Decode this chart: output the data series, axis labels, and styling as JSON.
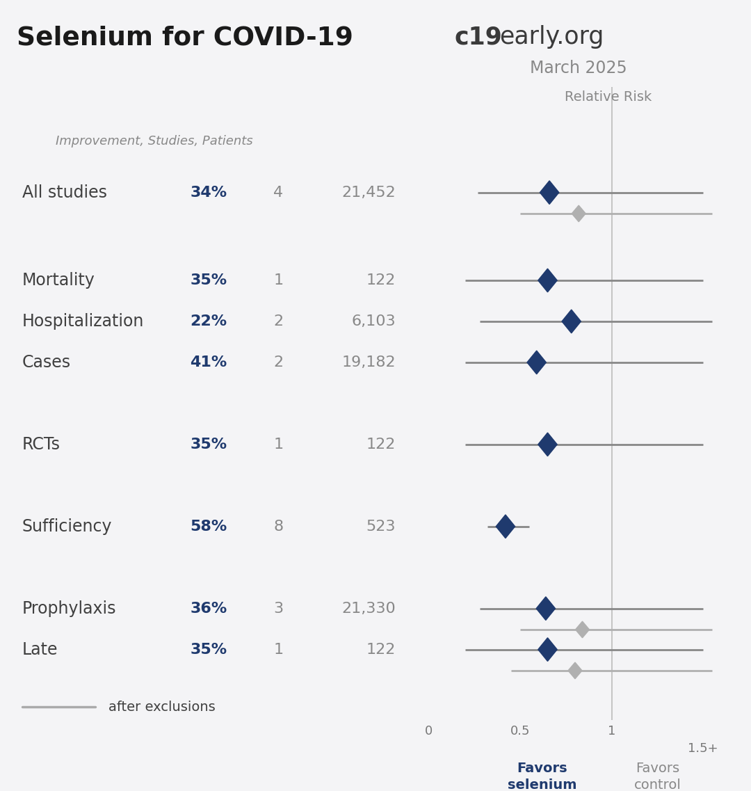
{
  "title_left": "Selenium for COVID-19",
  "title_right_bold": "c19",
  "title_right_normal": "early.org",
  "subtitle_right": "March 2025",
  "rel_risk_label": "Relative Risk",
  "col_header": "Improvement, Studies, Patients",
  "bg_color": "#f4f4f6",
  "dark_blue": "#1f3a6e",
  "gray_text": "#888888",
  "dark_gray_text": "#404040",
  "rows": [
    {
      "label": "All studies",
      "pct": "34%",
      "studies": "4",
      "patients": "21,452",
      "point": 0.66,
      "ci_low": 0.27,
      "ci_high": 1.5,
      "has_exclusion": true,
      "excl_point": 0.82,
      "excl_low": 0.5,
      "excl_high": 1.55,
      "y": 9.0
    },
    {
      "label": "Mortality",
      "pct": "35%",
      "studies": "1",
      "patients": "122",
      "point": 0.65,
      "ci_low": 0.2,
      "ci_high": 1.5,
      "has_exclusion": false,
      "y": 7.5
    },
    {
      "label": "Hospitalization",
      "pct": "22%",
      "studies": "2",
      "patients": "6,103",
      "point": 0.78,
      "ci_low": 0.28,
      "ci_high": 1.55,
      "has_exclusion": false,
      "y": 6.8
    },
    {
      "label": "Cases",
      "pct": "41%",
      "studies": "2",
      "patients": "19,182",
      "point": 0.59,
      "ci_low": 0.2,
      "ci_high": 1.5,
      "has_exclusion": false,
      "y": 6.1
    },
    {
      "label": "RCTs",
      "pct": "35%",
      "studies": "1",
      "patients": "122",
      "point": 0.65,
      "ci_low": 0.2,
      "ci_high": 1.5,
      "has_exclusion": false,
      "y": 4.7
    },
    {
      "label": "Sufficiency",
      "pct": "58%",
      "studies": "8",
      "patients": "523",
      "point": 0.42,
      "ci_low": 0.32,
      "ci_high": 0.55,
      "has_exclusion": false,
      "y": 3.3
    },
    {
      "label": "Prophylaxis",
      "pct": "36%",
      "studies": "3",
      "patients": "21,330",
      "point": 0.64,
      "ci_low": 0.28,
      "ci_high": 1.5,
      "has_exclusion": true,
      "excl_point": 0.84,
      "excl_low": 0.5,
      "excl_high": 1.55,
      "y": 1.9
    },
    {
      "label": "Late",
      "pct": "35%",
      "studies": "1",
      "patients": "122",
      "point": 0.65,
      "ci_low": 0.2,
      "ci_high": 1.5,
      "has_exclusion": true,
      "excl_point": 0.8,
      "excl_low": 0.45,
      "excl_high": 1.55,
      "y": 1.2
    }
  ],
  "favors_left": "Favors\nselenium",
  "favors_right": "Favors\ncontrol",
  "excl_legend": "after exclusions"
}
